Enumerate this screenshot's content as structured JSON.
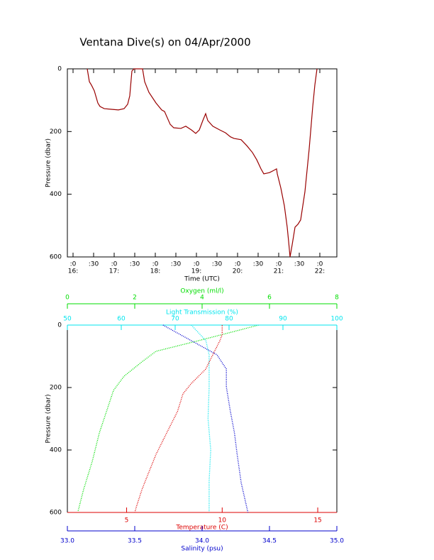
{
  "chart_data": [
    {
      "type": "line",
      "title": "Ventana Dive(s) on 04/Apr/2000",
      "xlabel": "Time (UTC)",
      "ylabel": "Pressure (dbar)",
      "xlim": [
        15.862,
        22.414
      ],
      "ylim": [
        0,
        600
      ],
      "y_reversed": true,
      "xticks": [
        {
          "value": 16,
          "label": ":0"
        },
        {
          "value": 16.5,
          "label": ":30"
        },
        {
          "value": 17,
          "label": ":0"
        },
        {
          "value": 17.5,
          "label": ":30"
        },
        {
          "value": 18,
          "label": ":0"
        },
        {
          "value": 18.5,
          "label": ":30"
        },
        {
          "value": 19,
          "label": ":0"
        },
        {
          "value": 19.5,
          "label": ":30"
        },
        {
          "value": 20,
          "label": ":0"
        },
        {
          "value": 20.5,
          "label": ":30"
        },
        {
          "value": 21,
          "label": ":0"
        },
        {
          "value": 21.5,
          "label": ":30"
        },
        {
          "value": 22,
          "label": ":0"
        }
      ],
      "xticks_hour": [
        {
          "value": 16,
          "label": "16:"
        },
        {
          "value": 17,
          "label": "17:"
        },
        {
          "value": 18,
          "label": "18:"
        },
        {
          "value": 19,
          "label": "19:"
        },
        {
          "value": 20,
          "label": "20:"
        },
        {
          "value": 21,
          "label": "21:"
        },
        {
          "value": 22,
          "label": "22:"
        }
      ],
      "yticks": [
        0,
        200,
        400,
        600
      ],
      "color": "#990000",
      "x": [
        16.345,
        16.397,
        16.448,
        16.517,
        16.603,
        16.655,
        16.759,
        16.931,
        17.103,
        17.241,
        17.328,
        17.379,
        17.431,
        17.483,
        17.69,
        17.741,
        17.845,
        18.017,
        18.155,
        18.224,
        18.362,
        18.448,
        18.621,
        18.741,
        18.879,
        18.983,
        19.069,
        19.155,
        19.224,
        19.276,
        19.397,
        19.569,
        19.707,
        19.828,
        19.914,
        20.086,
        20.224,
        20.362,
        20.466,
        20.569,
        20.638,
        20.776,
        20.879,
        20.948,
        20.966,
        21.052,
        21.138,
        21.207,
        21.241,
        21.276,
        21.328,
        21.397,
        21.466,
        21.534,
        21.638,
        21.741,
        21.828,
        21.879,
        21.931
      ],
      "values": [
        0,
        41,
        52,
        70,
        109,
        120,
        127,
        129,
        131,
        127,
        113,
        86,
        7,
        0,
        0,
        41,
        75,
        109,
        131,
        136,
        177,
        188,
        190,
        183,
        195,
        206,
        195,
        165,
        143,
        165,
        183,
        195,
        204,
        217,
        222,
        226,
        245,
        267,
        290,
        319,
        335,
        331,
        324,
        319,
        335,
        380,
        437,
        505,
        550,
        600,
        561,
        505,
        496,
        482,
        392,
        256,
        120,
        52,
        0
      ]
    },
    {
      "type": "profile",
      "ylabel": "Pressure (dbar)",
      "ylim": [
        0,
        600
      ],
      "y_reversed": true,
      "yticks": [
        0,
        200,
        400,
        600
      ],
      "series": [
        {
          "name": "Oxygen (ml/l)",
          "color": "#00dd00",
          "axis_position": "top-outer",
          "xlim": [
            0,
            8
          ],
          "xticks": [
            0,
            2,
            4,
            6,
            8
          ],
          "x": [
            5.68,
            3.89,
            2.63,
            2.21,
            1.68,
            1.37,
            1.16,
            0.95,
            0.74,
            0.48,
            0.32
          ],
          "values": [
            0,
            50,
            84,
            118,
            164,
            209,
            277,
            345,
            436,
            527,
            595
          ]
        },
        {
          "name": "Light Transmission (%)",
          "color": "#00e5ee",
          "axis_position": "top",
          "xlim": [
            50,
            100
          ],
          "xticks": [
            50,
            60,
            70,
            80,
            90,
            100
          ],
          "x": [
            73.0,
            75.7,
            76.3,
            76.3,
            76.1,
            76.6,
            76.3,
            76.3
          ],
          "values": [
            0,
            50,
            95,
            200,
            300,
            400,
            500,
            600
          ]
        },
        {
          "name": "Temperature (C)",
          "color": "#dd0000",
          "axis_position": "bottom",
          "xlim": [
            1.9,
            16
          ],
          "xticks": [
            5,
            10,
            15
          ],
          "x": [
            10.0,
            10.0,
            9.88,
            9.51,
            9.14,
            8.4,
            7.95,
            7.66,
            7.1,
            6.54,
            6.17,
            5.8,
            5.5,
            5.43
          ],
          "values": [
            0,
            30,
            50,
            95,
            141,
            186,
            220,
            277,
            345,
            414,
            470,
            527,
            584,
            600
          ]
        },
        {
          "name": "Salinity (psu)",
          "color": "#0000cc",
          "axis_position": "bottom-outer",
          "xlim": [
            33,
            35
          ],
          "xticks": [
            {
              "value": 33,
              "label": "33.0"
            },
            {
              "value": 33.5,
              "label": "33.5"
            },
            {
              "value": 34,
              "label": "34.0"
            },
            {
              "value": 34.5,
              "label": "34.5"
            },
            {
              "value": 35,
              "label": "35.0"
            }
          ],
          "x": [
            33.71,
            33.92,
            34.11,
            34.18,
            34.18,
            34.21,
            34.24,
            34.26,
            34.29,
            34.34
          ],
          "values": [
            0,
            50,
            95,
            141,
            198,
            277,
            345,
            414,
            505,
            600
          ]
        }
      ]
    }
  ]
}
